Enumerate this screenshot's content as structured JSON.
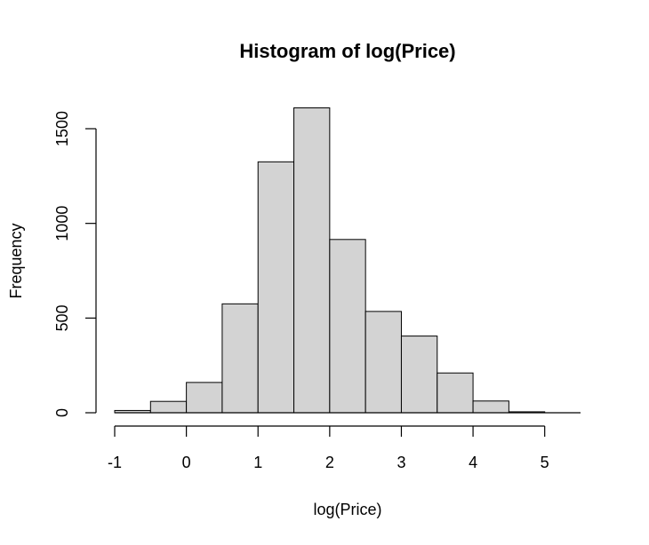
{
  "chart_data": {
    "type": "bar",
    "title": "Histogram of log(Price)",
    "xlabel": "log(Price)",
    "ylabel": "Frequency",
    "xlim": [
      -1,
      5.5
    ],
    "ylim": [
      0,
      1600
    ],
    "x_ticks": [
      -1,
      0,
      1,
      2,
      3,
      4,
      5
    ],
    "y_ticks": [
      0,
      500,
      1000,
      1500
    ],
    "bin_width": 0.5,
    "bins": [
      {
        "start": -1.0,
        "end": -0.5,
        "value": 12
      },
      {
        "start": -0.5,
        "end": 0.0,
        "value": 60
      },
      {
        "start": 0.0,
        "end": 0.5,
        "value": 160
      },
      {
        "start": 0.5,
        "end": 1.0,
        "value": 575
      },
      {
        "start": 1.0,
        "end": 1.5,
        "value": 1325
      },
      {
        "start": 1.5,
        "end": 2.0,
        "value": 1610
      },
      {
        "start": 2.0,
        "end": 2.5,
        "value": 915
      },
      {
        "start": 2.5,
        "end": 3.0,
        "value": 535
      },
      {
        "start": 3.0,
        "end": 3.5,
        "value": 405
      },
      {
        "start": 3.5,
        "end": 4.0,
        "value": 210
      },
      {
        "start": 4.0,
        "end": 4.5,
        "value": 62
      },
      {
        "start": 4.5,
        "end": 5.0,
        "value": 5
      }
    ],
    "colors": {
      "bar_fill": "#d3d3d3",
      "bar_stroke": "#000000"
    },
    "grid": false,
    "legend": "none"
  }
}
